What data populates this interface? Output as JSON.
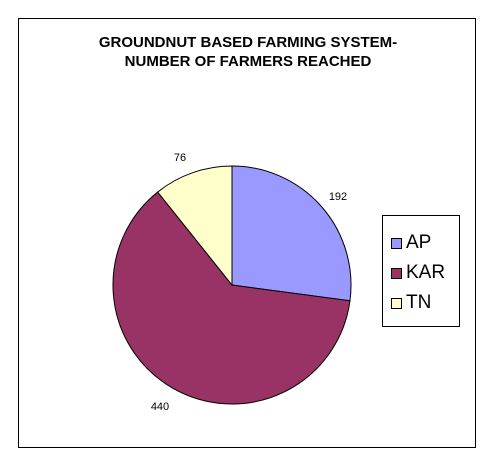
{
  "chart_data": {
    "type": "pie",
    "title_lines": [
      "GROUNDNUT BASED FARMING SYSTEM-",
      "NUMBER OF FARMERS REACHED"
    ],
    "categories": [
      "AP",
      "KAR",
      "TN"
    ],
    "values": [
      192,
      440,
      76
    ],
    "colors": [
      "#9999ff",
      "#993366",
      "#ffffcc"
    ],
    "legend_position": "right",
    "data_labels": [
      "192",
      "440",
      "76"
    ]
  }
}
